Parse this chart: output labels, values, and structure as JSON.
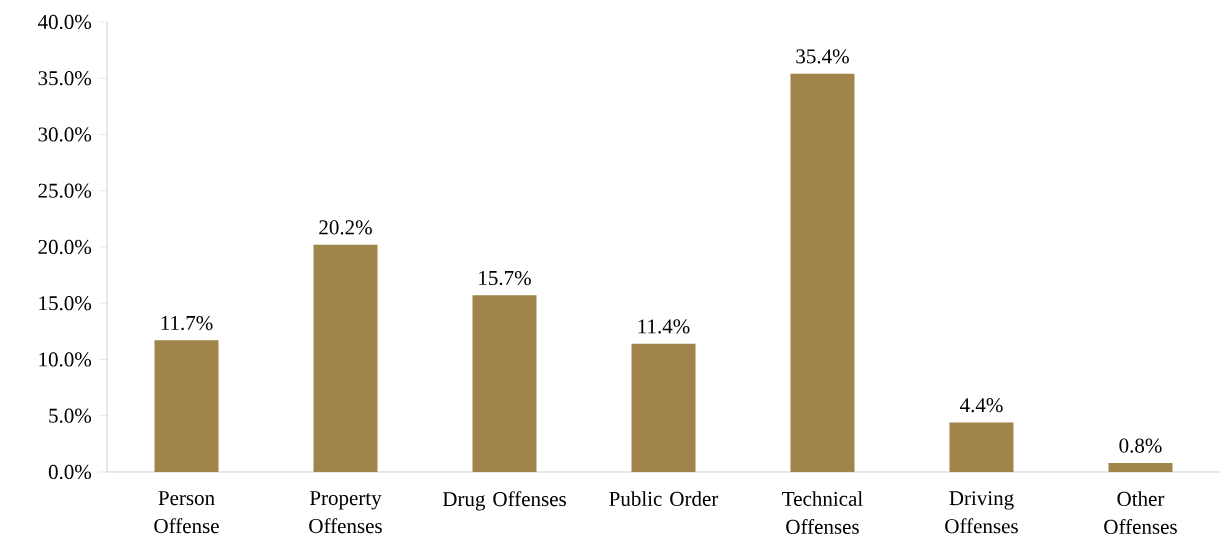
{
  "chart_data": {
    "type": "bar",
    "categories": [
      "Person Offense",
      "Property Offenses",
      "Drug Offenses",
      "Public Order",
      "Technical Offenses",
      "Driving Offenses",
      "Other Offenses"
    ],
    "values": [
      11.7,
      20.2,
      15.7,
      11.4,
      35.4,
      4.4,
      0.8
    ],
    "value_labels": [
      "11.7%",
      "20.2%",
      "15.7%",
      "11.4%",
      "35.4%",
      "4.4%",
      "0.8%"
    ],
    "color": "#a0844a",
    "ylim": [
      0,
      40
    ],
    "yticks": [
      {
        "value": 0,
        "label": "0.0%"
      },
      {
        "value": 5,
        "label": "5.0%"
      },
      {
        "value": 10,
        "label": "10.0%"
      },
      {
        "value": 15,
        "label": "15.0%"
      },
      {
        "value": 20,
        "label": "20.0%"
      },
      {
        "value": 25,
        "label": "25.0%"
      },
      {
        "value": 30,
        "label": "30.0%"
      },
      {
        "value": 35,
        "label": "35.0%"
      },
      {
        "value": 40,
        "label": "40.0%"
      }
    ],
    "grid": false
  }
}
